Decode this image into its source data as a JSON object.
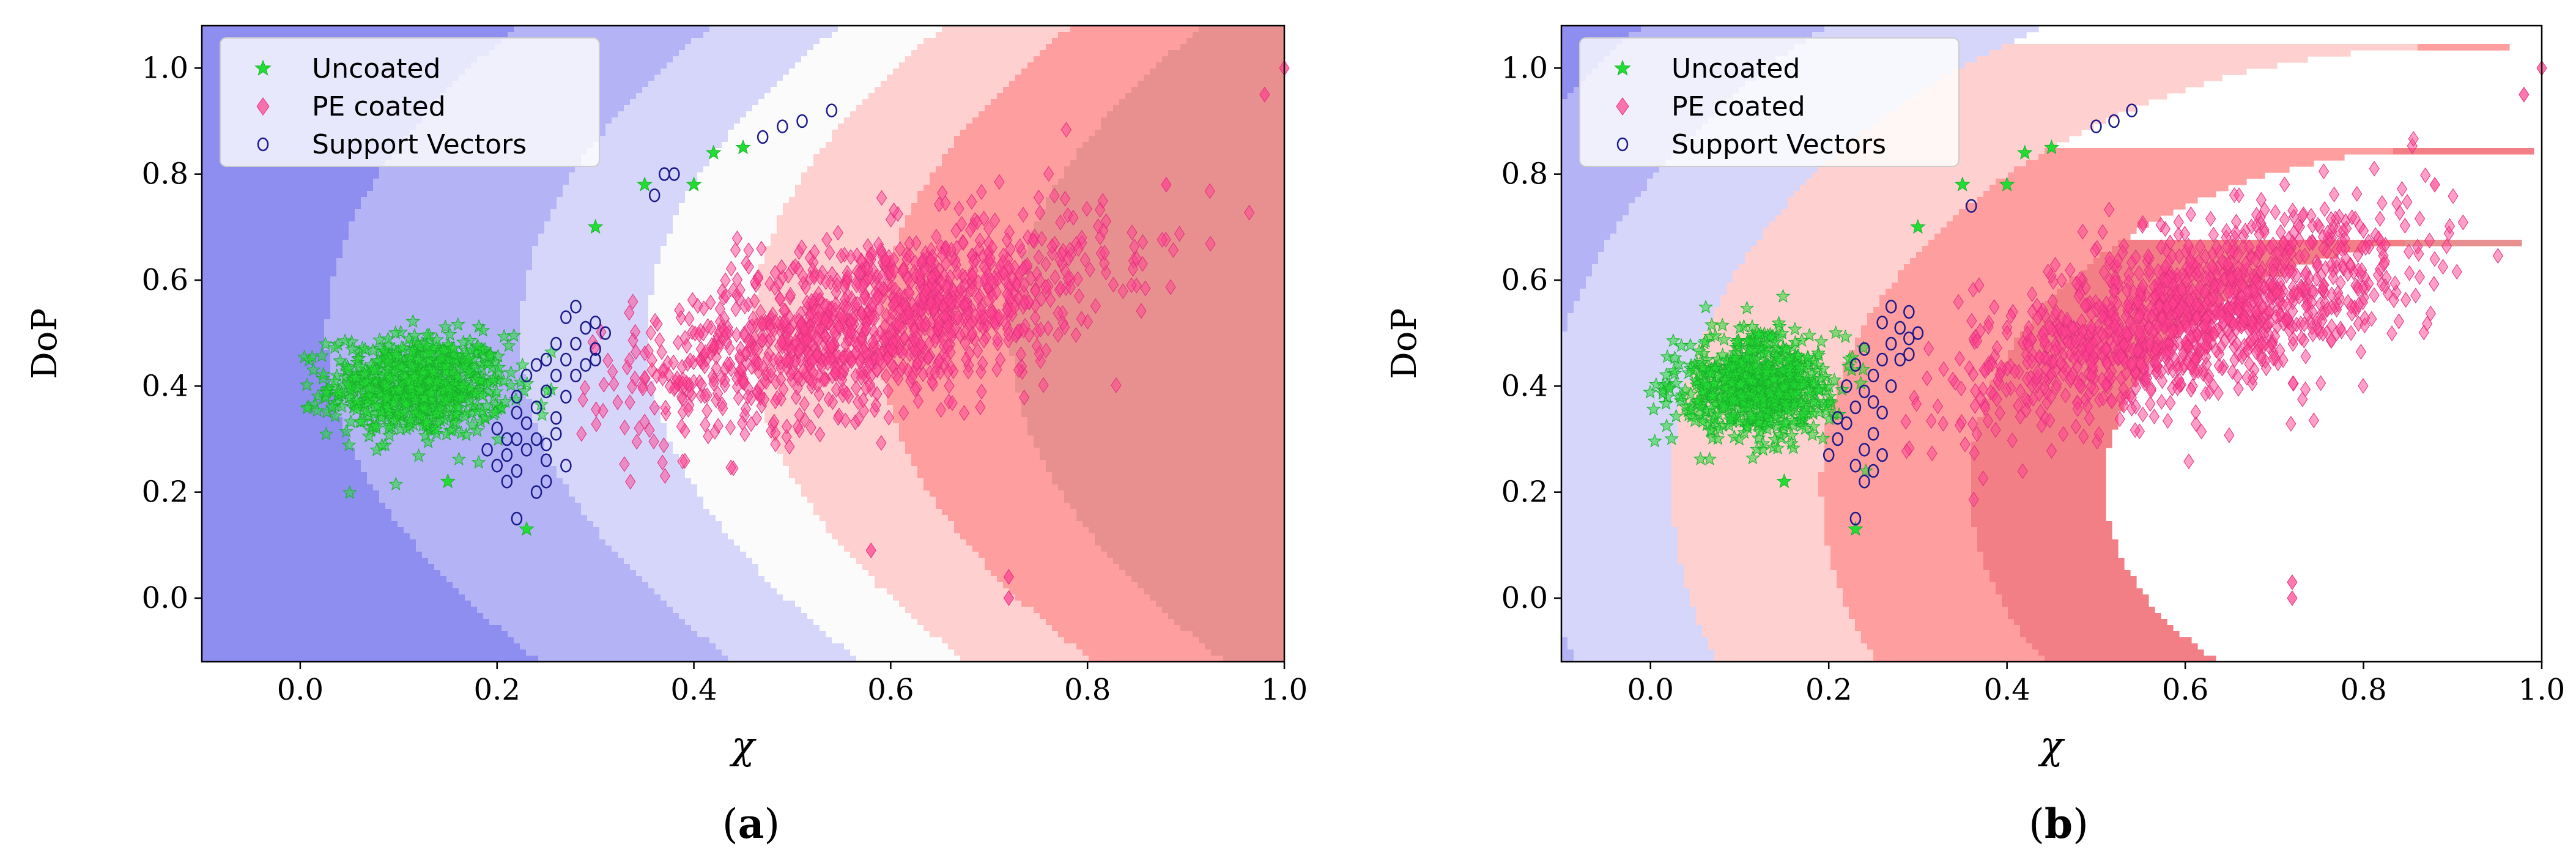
{
  "colors": {
    "uncoated": "#22dd33",
    "pe_coated": "#ff3f8f",
    "support_vectors": "#1a1a8c",
    "region_blue_dark": "#8e8ef0",
    "region_blue_mid": "#b3b3f6",
    "region_blue_light": "#d6d6fa",
    "region_white": "#fbfbfb",
    "region_red_light": "#ffd0d0",
    "region_red_mid": "#ff9e9e",
    "region_red_dark": "#e89090"
  },
  "legend": {
    "uncoated": "Uncoated",
    "pe_coated": "PE coated",
    "support_vectors": "Support Vectors"
  },
  "chart_data": [
    {
      "type": "scatter",
      "panel_label": "(a)",
      "xlabel": "χ",
      "ylabel": "DoP",
      "xlim": [
        -0.1,
        1.0
      ],
      "ylim": [
        -0.12,
        1.08
      ],
      "xticks": [
        "0.0",
        "0.2",
        "0.4",
        "0.6",
        "0.8",
        "1.0"
      ],
      "yticks": [
        "0.0",
        "0.2",
        "0.4",
        "0.6",
        "0.8",
        "1.0"
      ],
      "legend_position": "top-left",
      "grid": false,
      "series": [
        {
          "name": "Uncoated",
          "marker": "star",
          "cluster_center": [
            0.12,
            0.4
          ],
          "spread": [
            0.06,
            0.06
          ],
          "outliers": [
            [
              0.35,
              0.78
            ],
            [
              0.42,
              0.84
            ],
            [
              0.45,
              0.85
            ],
            [
              0.4,
              0.78
            ],
            [
              0.3,
              0.7
            ],
            [
              0.23,
              0.13
            ],
            [
              0.15,
              0.22
            ]
          ]
        },
        {
          "name": "PE coated",
          "marker": "diamond",
          "cluster_center": [
            0.58,
            0.52
          ],
          "spread": [
            0.12,
            0.08
          ],
          "outliers": [
            [
              0.72,
              0.04
            ],
            [
              0.72,
              0.0
            ],
            [
              1.0,
              1.0
            ],
            [
              0.98,
              0.95
            ],
            [
              0.58,
              0.09
            ],
            [
              0.88,
              0.78
            ]
          ]
        },
        {
          "name": "Support Vectors",
          "marker": "open-circle",
          "points": [
            [
              0.2,
              0.25
            ],
            [
              0.21,
              0.27
            ],
            [
              0.22,
              0.3
            ],
            [
              0.23,
              0.33
            ],
            [
              0.24,
              0.36
            ],
            [
              0.25,
              0.39
            ],
            [
              0.26,
              0.42
            ],
            [
              0.27,
              0.45
            ],
            [
              0.28,
              0.48
            ],
            [
              0.29,
              0.51
            ],
            [
              0.21,
              0.22
            ],
            [
              0.22,
              0.24
            ],
            [
              0.25,
              0.29
            ],
            [
              0.23,
              0.28
            ],
            [
              0.24,
              0.3
            ],
            [
              0.26,
              0.34
            ],
            [
              0.27,
              0.38
            ],
            [
              0.28,
              0.42
            ],
            [
              0.3,
              0.47
            ],
            [
              0.27,
              0.53
            ],
            [
              0.25,
              0.45
            ],
            [
              0.22,
              0.38
            ],
            [
              0.23,
              0.42
            ],
            [
              0.24,
              0.44
            ],
            [
              0.26,
              0.48
            ],
            [
              0.28,
              0.55
            ],
            [
              0.3,
              0.52
            ],
            [
              0.29,
              0.44
            ],
            [
              0.2,
              0.32
            ],
            [
              0.22,
              0.35
            ],
            [
              0.25,
              0.26
            ],
            [
              0.26,
              0.31
            ],
            [
              0.24,
              0.2
            ],
            [
              0.25,
              0.22
            ],
            [
              0.27,
              0.25
            ],
            [
              0.22,
              0.15
            ],
            [
              0.31,
              0.5
            ],
            [
              0.3,
              0.45
            ],
            [
              0.19,
              0.28
            ],
            [
              0.21,
              0.3
            ],
            [
              0.36,
              0.76
            ],
            [
              0.37,
              0.8
            ],
            [
              0.38,
              0.8
            ],
            [
              0.47,
              0.87
            ],
            [
              0.49,
              0.89
            ],
            [
              0.51,
              0.9
            ],
            [
              0.54,
              0.92
            ]
          ]
        }
      ]
    },
    {
      "type": "scatter",
      "panel_label": "(b)",
      "xlabel": "χ",
      "ylabel": "DoP",
      "xlim": [
        -0.1,
        1.0
      ],
      "ylim": [
        -0.12,
        1.08
      ],
      "xticks": [
        "0.0",
        "0.2",
        "0.4",
        "0.6",
        "0.8",
        "1.0"
      ],
      "yticks": [
        "0.0",
        "0.2",
        "0.4",
        "0.6",
        "0.8",
        "1.0"
      ],
      "legend_position": "top-left",
      "grid": false,
      "series": [
        {
          "name": "Uncoated",
          "marker": "star",
          "cluster_center": [
            0.12,
            0.4
          ],
          "spread": [
            0.06,
            0.06
          ],
          "outliers": [
            [
              0.35,
              0.78
            ],
            [
              0.42,
              0.84
            ],
            [
              0.45,
              0.85
            ],
            [
              0.4,
              0.78
            ],
            [
              0.3,
              0.7
            ],
            [
              0.23,
              0.13
            ],
            [
              0.15,
              0.22
            ]
          ]
        },
        {
          "name": "PE coated",
          "marker": "diamond",
          "cluster_center": [
            0.6,
            0.53
          ],
          "spread": [
            0.12,
            0.08
          ],
          "outliers": [
            [
              0.72,
              0.03
            ],
            [
              0.72,
              0.0
            ],
            [
              1.0,
              1.0
            ],
            [
              0.98,
              0.95
            ],
            [
              0.88,
              0.78
            ]
          ]
        },
        {
          "name": "Support Vectors",
          "marker": "open-circle",
          "points": [
            [
              0.2,
              0.27
            ],
            [
              0.21,
              0.3
            ],
            [
              0.22,
              0.33
            ],
            [
              0.23,
              0.36
            ],
            [
              0.24,
              0.39
            ],
            [
              0.25,
              0.42
            ],
            [
              0.26,
              0.45
            ],
            [
              0.27,
              0.48
            ],
            [
              0.28,
              0.51
            ],
            [
              0.29,
              0.54
            ],
            [
              0.23,
              0.25
            ],
            [
              0.24,
              0.28
            ],
            [
              0.25,
              0.31
            ],
            [
              0.26,
              0.35
            ],
            [
              0.27,
              0.4
            ],
            [
              0.28,
              0.45
            ],
            [
              0.29,
              0.49
            ],
            [
              0.24,
              0.47
            ],
            [
              0.26,
              0.52
            ],
            [
              0.27,
              0.55
            ],
            [
              0.22,
              0.4
            ],
            [
              0.23,
              0.44
            ],
            [
              0.25,
              0.37
            ],
            [
              0.24,
              0.22
            ],
            [
              0.25,
              0.24
            ],
            [
              0.26,
              0.27
            ],
            [
              0.23,
              0.15
            ],
            [
              0.3,
              0.5
            ],
            [
              0.29,
              0.46
            ],
            [
              0.21,
              0.34
            ],
            [
              0.36,
              0.74
            ],
            [
              0.5,
              0.89
            ],
            [
              0.52,
              0.9
            ],
            [
              0.54,
              0.92
            ]
          ]
        }
      ]
    }
  ]
}
